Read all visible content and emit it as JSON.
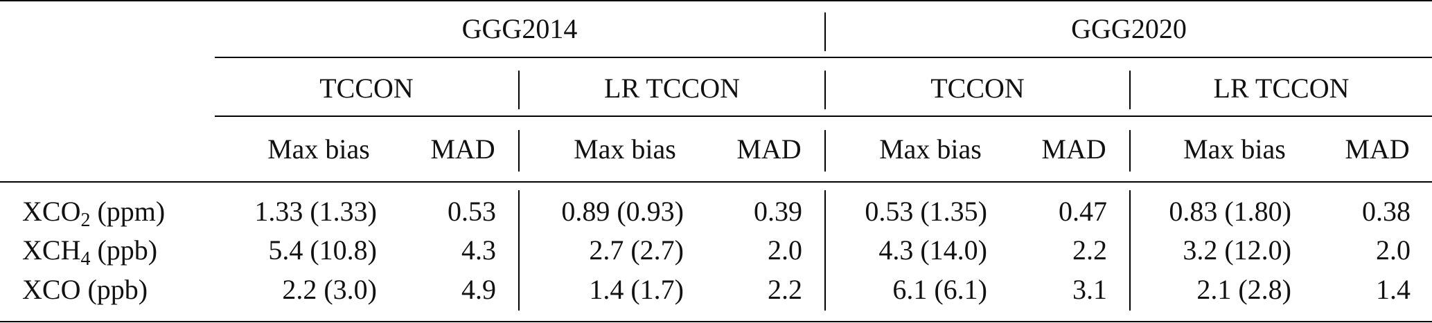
{
  "groups": [
    "GGG2014",
    "GGG2020"
  ],
  "subgroups": [
    "TCCON",
    "LR TCCON",
    "TCCON",
    "LR TCCON"
  ],
  "col_headers": [
    "Max bias",
    "MAD",
    "Max bias",
    "MAD",
    "Max bias",
    "MAD",
    "Max bias",
    "MAD"
  ],
  "rows": [
    {
      "label_main": "XCO",
      "label_sub": "2",
      "label_unit": " (ppm)",
      "values": [
        "1.33 (1.33)",
        "0.53",
        "0.89 (0.93)",
        "0.39",
        "0.53 (1.35)",
        "0.47",
        "0.83 (1.80)",
        "0.38"
      ]
    },
    {
      "label_main": "XCH",
      "label_sub": "4",
      "label_unit": " (ppb)",
      "values": [
        "5.4 (10.8)",
        "4.3",
        "2.7 (2.7)",
        "2.0",
        "4.3 (14.0)",
        "2.2",
        "3.2 (12.0)",
        "2.0"
      ]
    },
    {
      "label_main": "XCO",
      "label_sub": "",
      "label_unit": " (ppb)",
      "values": [
        "2.2 (3.0)",
        "4.9",
        "1.4 (1.7)",
        "2.2",
        "6.1 (6.1)",
        "3.1",
        "2.1 (2.8)",
        "1.4"
      ]
    }
  ]
}
